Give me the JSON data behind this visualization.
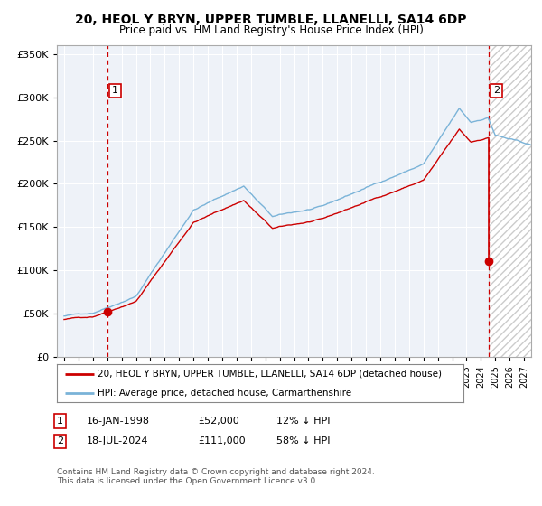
{
  "title1": "20, HEOL Y BRYN, UPPER TUMBLE, LLANELLI, SA14 6DP",
  "title2": "Price paid vs. HM Land Registry's House Price Index (HPI)",
  "legend1": "20, HEOL Y BRYN, UPPER TUMBLE, LLANELLI, SA14 6DP (detached house)",
  "legend2": "HPI: Average price, detached house, Carmarthenshire",
  "footnote": "Contains HM Land Registry data © Crown copyright and database right 2024.\nThis data is licensed under the Open Government Licence v3.0.",
  "sale1_year": 1998.04,
  "sale1_price": 52000,
  "sale2_year": 2024.54,
  "sale2_price": 111000,
  "hpi_color": "#7ab3d8",
  "sale_color": "#cc0000",
  "vline_color": "#cc0000",
  "ylim_max": 360000,
  "ytick_step": 50000,
  "xmin": 1994.5,
  "xmax": 2027.5,
  "plot_bg_color": "#eef2f8",
  "grid_color": "#ffffff",
  "hatch_start": 2024.54,
  "hatch_end": 2027.5
}
